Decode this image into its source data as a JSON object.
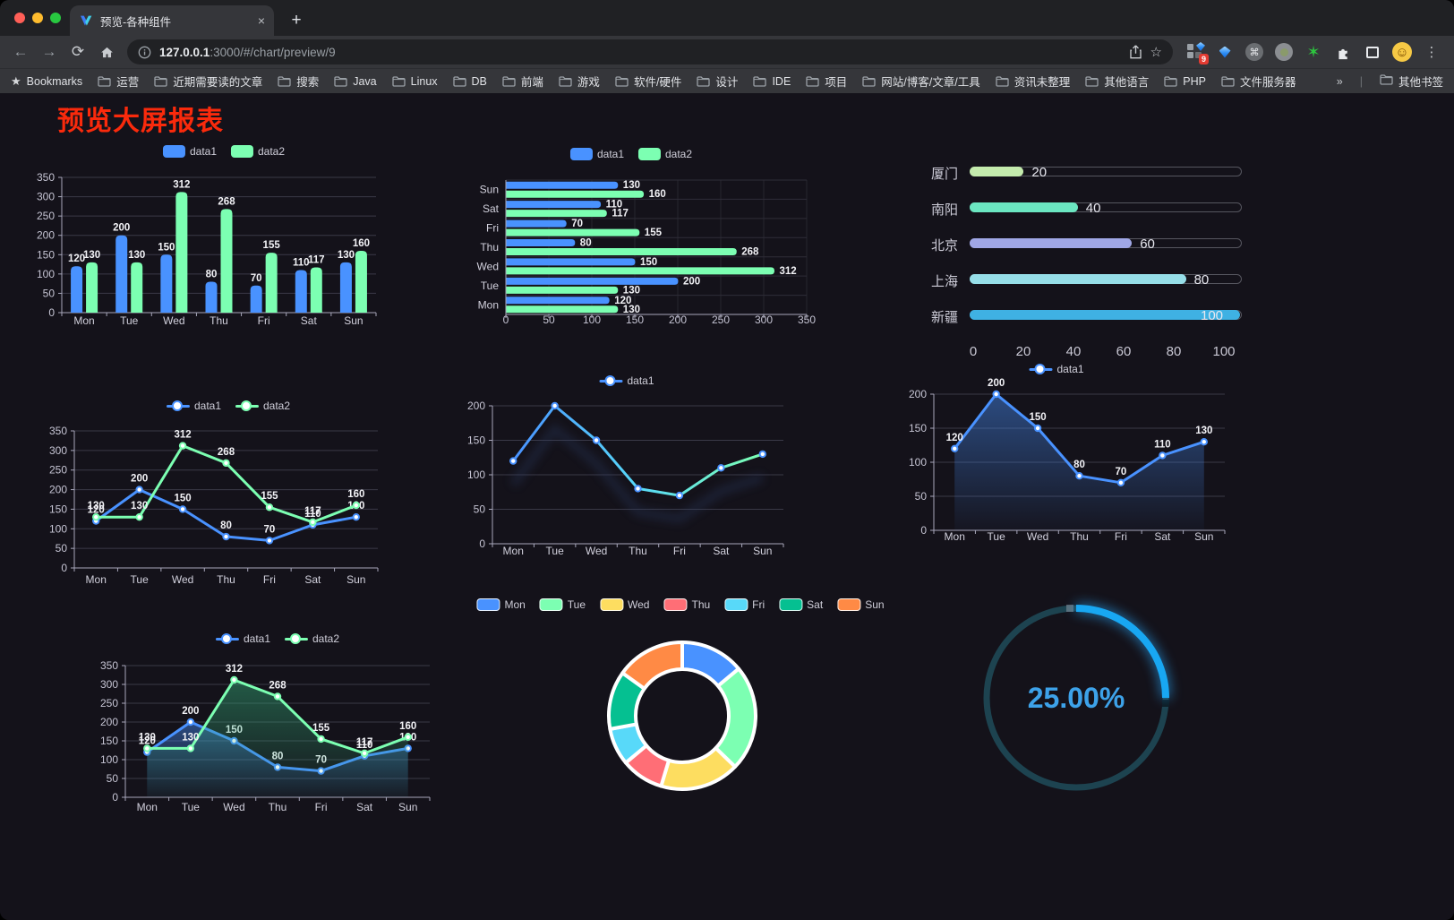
{
  "browser": {
    "traffic_lights": [
      "#ff5f57",
      "#febc2e",
      "#28c840"
    ],
    "tab_title": "预览-各种组件",
    "tab_close": "×",
    "new_tab": "+",
    "url_host": "127.0.0.1",
    "url_path": ":3000/#/chart/preview/9",
    "extension_badge": "9",
    "cmd_glyph": "⌘",
    "menu_dots": "⋮",
    "avatar_glyph": "☺",
    "star_glyph": "✶",
    "bookmarks_root": "Bookmarks",
    "bookmarks": [
      "运营",
      "近期需要读的文章",
      "搜索",
      "Java",
      "Linux",
      "DB",
      "前端",
      "游戏",
      "软件/硬件",
      "设计",
      "IDE",
      "项目",
      "网站/博客/文章/工具",
      "资讯未整理",
      "其他语言",
      "PHP",
      "文件服务器"
    ],
    "bookmarks_overflow": "»",
    "other_bookmarks": "其他书签"
  },
  "page": {
    "title": "预览大屏报表"
  },
  "chart_data": [
    {
      "type": "bar",
      "categories": [
        "Mon",
        "Tue",
        "Wed",
        "Thu",
        "Fri",
        "Sat",
        "Sun"
      ],
      "series": [
        {
          "name": "data1",
          "color": "#4992ff",
          "values": [
            120,
            200,
            150,
            80,
            70,
            110,
            130
          ]
        },
        {
          "name": "data2",
          "color": "#7cffb2",
          "values": [
            130,
            130,
            312,
            268,
            155,
            117,
            160
          ]
        }
      ],
      "ylim": [
        0,
        350
      ],
      "ystep": 50,
      "legend_position": "top"
    },
    {
      "type": "hbar",
      "categories": [
        "Sun",
        "Sat",
        "Fri",
        "Thu",
        "Wed",
        "Tue",
        "Mon"
      ],
      "series": [
        {
          "name": "data1",
          "color": "#4992ff",
          "values": [
            130,
            110,
            70,
            80,
            150,
            200,
            120
          ]
        },
        {
          "name": "data2",
          "color": "#7cffb2",
          "values": [
            160,
            117,
            155,
            268,
            312,
            130,
            130
          ]
        }
      ],
      "xlim": [
        0,
        350
      ],
      "xstep": 50,
      "legend_position": "top"
    },
    {
      "type": "progress",
      "categories": [
        "厦门",
        "南阳",
        "北京",
        "上海",
        "新疆"
      ],
      "values": [
        20,
        40,
        60,
        80,
        100
      ],
      "colors": [
        "#c4ebad",
        "#6be6c1",
        "#a0a7e6",
        "#96dee8",
        "#3fb1e3"
      ],
      "xlim": [
        0,
        100
      ],
      "xticks": [
        0,
        20,
        40,
        60,
        80,
        100
      ]
    },
    {
      "type": "line",
      "categories": [
        "Mon",
        "Tue",
        "Wed",
        "Thu",
        "Fri",
        "Sat",
        "Sun"
      ],
      "series": [
        {
          "name": "data1",
          "color": "#4992ff",
          "values": [
            120,
            200,
            150,
            80,
            70,
            110,
            130
          ]
        },
        {
          "name": "data2",
          "color": "#7cffb2",
          "values": [
            130,
            130,
            312,
            268,
            155,
            117,
            160
          ]
        }
      ],
      "ylim": [
        0,
        350
      ],
      "ystep": 50,
      "labels": true,
      "area": false
    },
    {
      "type": "line",
      "categories": [
        "Mon",
        "Tue",
        "Wed",
        "Thu",
        "Fri",
        "Sat",
        "Sun"
      ],
      "series": [
        {
          "name": "data1",
          "color": "#4992ff",
          "values": [
            120,
            200,
            150,
            80,
            70,
            110,
            130
          ]
        }
      ],
      "ylim": [
        0,
        200
      ],
      "ystep": 50,
      "labels": false,
      "area": false,
      "gradient": [
        "#4992ff",
        "#58d9f9",
        "#7cffb2"
      ],
      "shadow": true
    },
    {
      "type": "line",
      "categories": [
        "Mon",
        "Tue",
        "Wed",
        "Thu",
        "Fri",
        "Sat",
        "Sun"
      ],
      "series": [
        {
          "name": "data1",
          "color": "#4992ff",
          "values": [
            120,
            200,
            150,
            80,
            70,
            110,
            130
          ]
        }
      ],
      "ylim": [
        0,
        200
      ],
      "ystep": 50,
      "labels": true,
      "area": true
    },
    {
      "type": "line",
      "categories": [
        "Mon",
        "Tue",
        "Wed",
        "Thu",
        "Fri",
        "Sat",
        "Sun"
      ],
      "series": [
        {
          "name": "data1",
          "color": "#4992ff",
          "values": [
            120,
            200,
            150,
            80,
            70,
            110,
            130
          ]
        },
        {
          "name": "data2",
          "color": "#7cffb2",
          "values": [
            130,
            130,
            312,
            268,
            155,
            117,
            160
          ]
        }
      ],
      "ylim": [
        0,
        350
      ],
      "ystep": 50,
      "labels": true,
      "area": true
    },
    {
      "type": "donut",
      "categories": [
        "Mon",
        "Tue",
        "Wed",
        "Thu",
        "Fri",
        "Sat",
        "Sun"
      ],
      "values": [
        120,
        200,
        150,
        80,
        70,
        110,
        130
      ],
      "colors": [
        "#4992ff",
        "#7cffb2",
        "#fddd60",
        "#ff6e76",
        "#58d9f9",
        "#05c091",
        "#ff8a45"
      ]
    },
    {
      "type": "gauge",
      "value": 25,
      "label": "25.00%",
      "color": "#18a7f2",
      "track": "#1d4350",
      "text_color": "#3da2e9"
    }
  ]
}
